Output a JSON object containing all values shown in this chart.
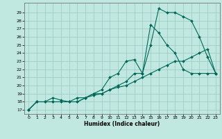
{
  "xlabel": "Humidex (Indice chaleur)",
  "bg_color": "#c0e8e0",
  "grid_color": "#98c8c0",
  "line_color": "#006858",
  "xlim": [
    -0.5,
    23.5
  ],
  "ylim": [
    16.5,
    30.2
  ],
  "xticks": [
    0,
    1,
    2,
    3,
    4,
    5,
    6,
    7,
    8,
    9,
    10,
    11,
    12,
    13,
    14,
    15,
    16,
    17,
    18,
    19,
    20,
    21,
    22,
    23
  ],
  "yticks": [
    17,
    18,
    19,
    20,
    21,
    22,
    23,
    24,
    25,
    26,
    27,
    28,
    29
  ],
  "line1_x": [
    0,
    1,
    2,
    3,
    4,
    5,
    6,
    7,
    8,
    9,
    10,
    11,
    12,
    13,
    14,
    15,
    16,
    17,
    18,
    19,
    20,
    21,
    22,
    23
  ],
  "line1_y": [
    17,
    18,
    18,
    18,
    18,
    18,
    18,
    18.5,
    19,
    19,
    19.5,
    20,
    20.5,
    21.5,
    21.5,
    25,
    29.5,
    29,
    29,
    28.5,
    28,
    26,
    23.5,
    21.5
  ],
  "line2_x": [
    0,
    1,
    2,
    3,
    4,
    5,
    6,
    7,
    8,
    9,
    10,
    11,
    12,
    13,
    14,
    15,
    16,
    17,
    18,
    19,
    20,
    21,
    22,
    23
  ],
  "line2_y": [
    17,
    18,
    18,
    18.5,
    18.2,
    18,
    18.5,
    18.5,
    19,
    19.5,
    21,
    21.5,
    23,
    23.2,
    21.5,
    27.5,
    26.5,
    25,
    24,
    22,
    21.5,
    21.5,
    21.5,
    21.5
  ],
  "line3_x": [
    0,
    1,
    2,
    3,
    4,
    5,
    6,
    7,
    8,
    9,
    10,
    11,
    12,
    13,
    14,
    15,
    16,
    17,
    18,
    19,
    20,
    21,
    22,
    23
  ],
  "line3_y": [
    17,
    18,
    18,
    18,
    18,
    18,
    18,
    18.5,
    18.8,
    19,
    19.5,
    19.8,
    20,
    20.5,
    21,
    21.5,
    22,
    22.5,
    23,
    23,
    23.5,
    24,
    24.5,
    21.5
  ]
}
